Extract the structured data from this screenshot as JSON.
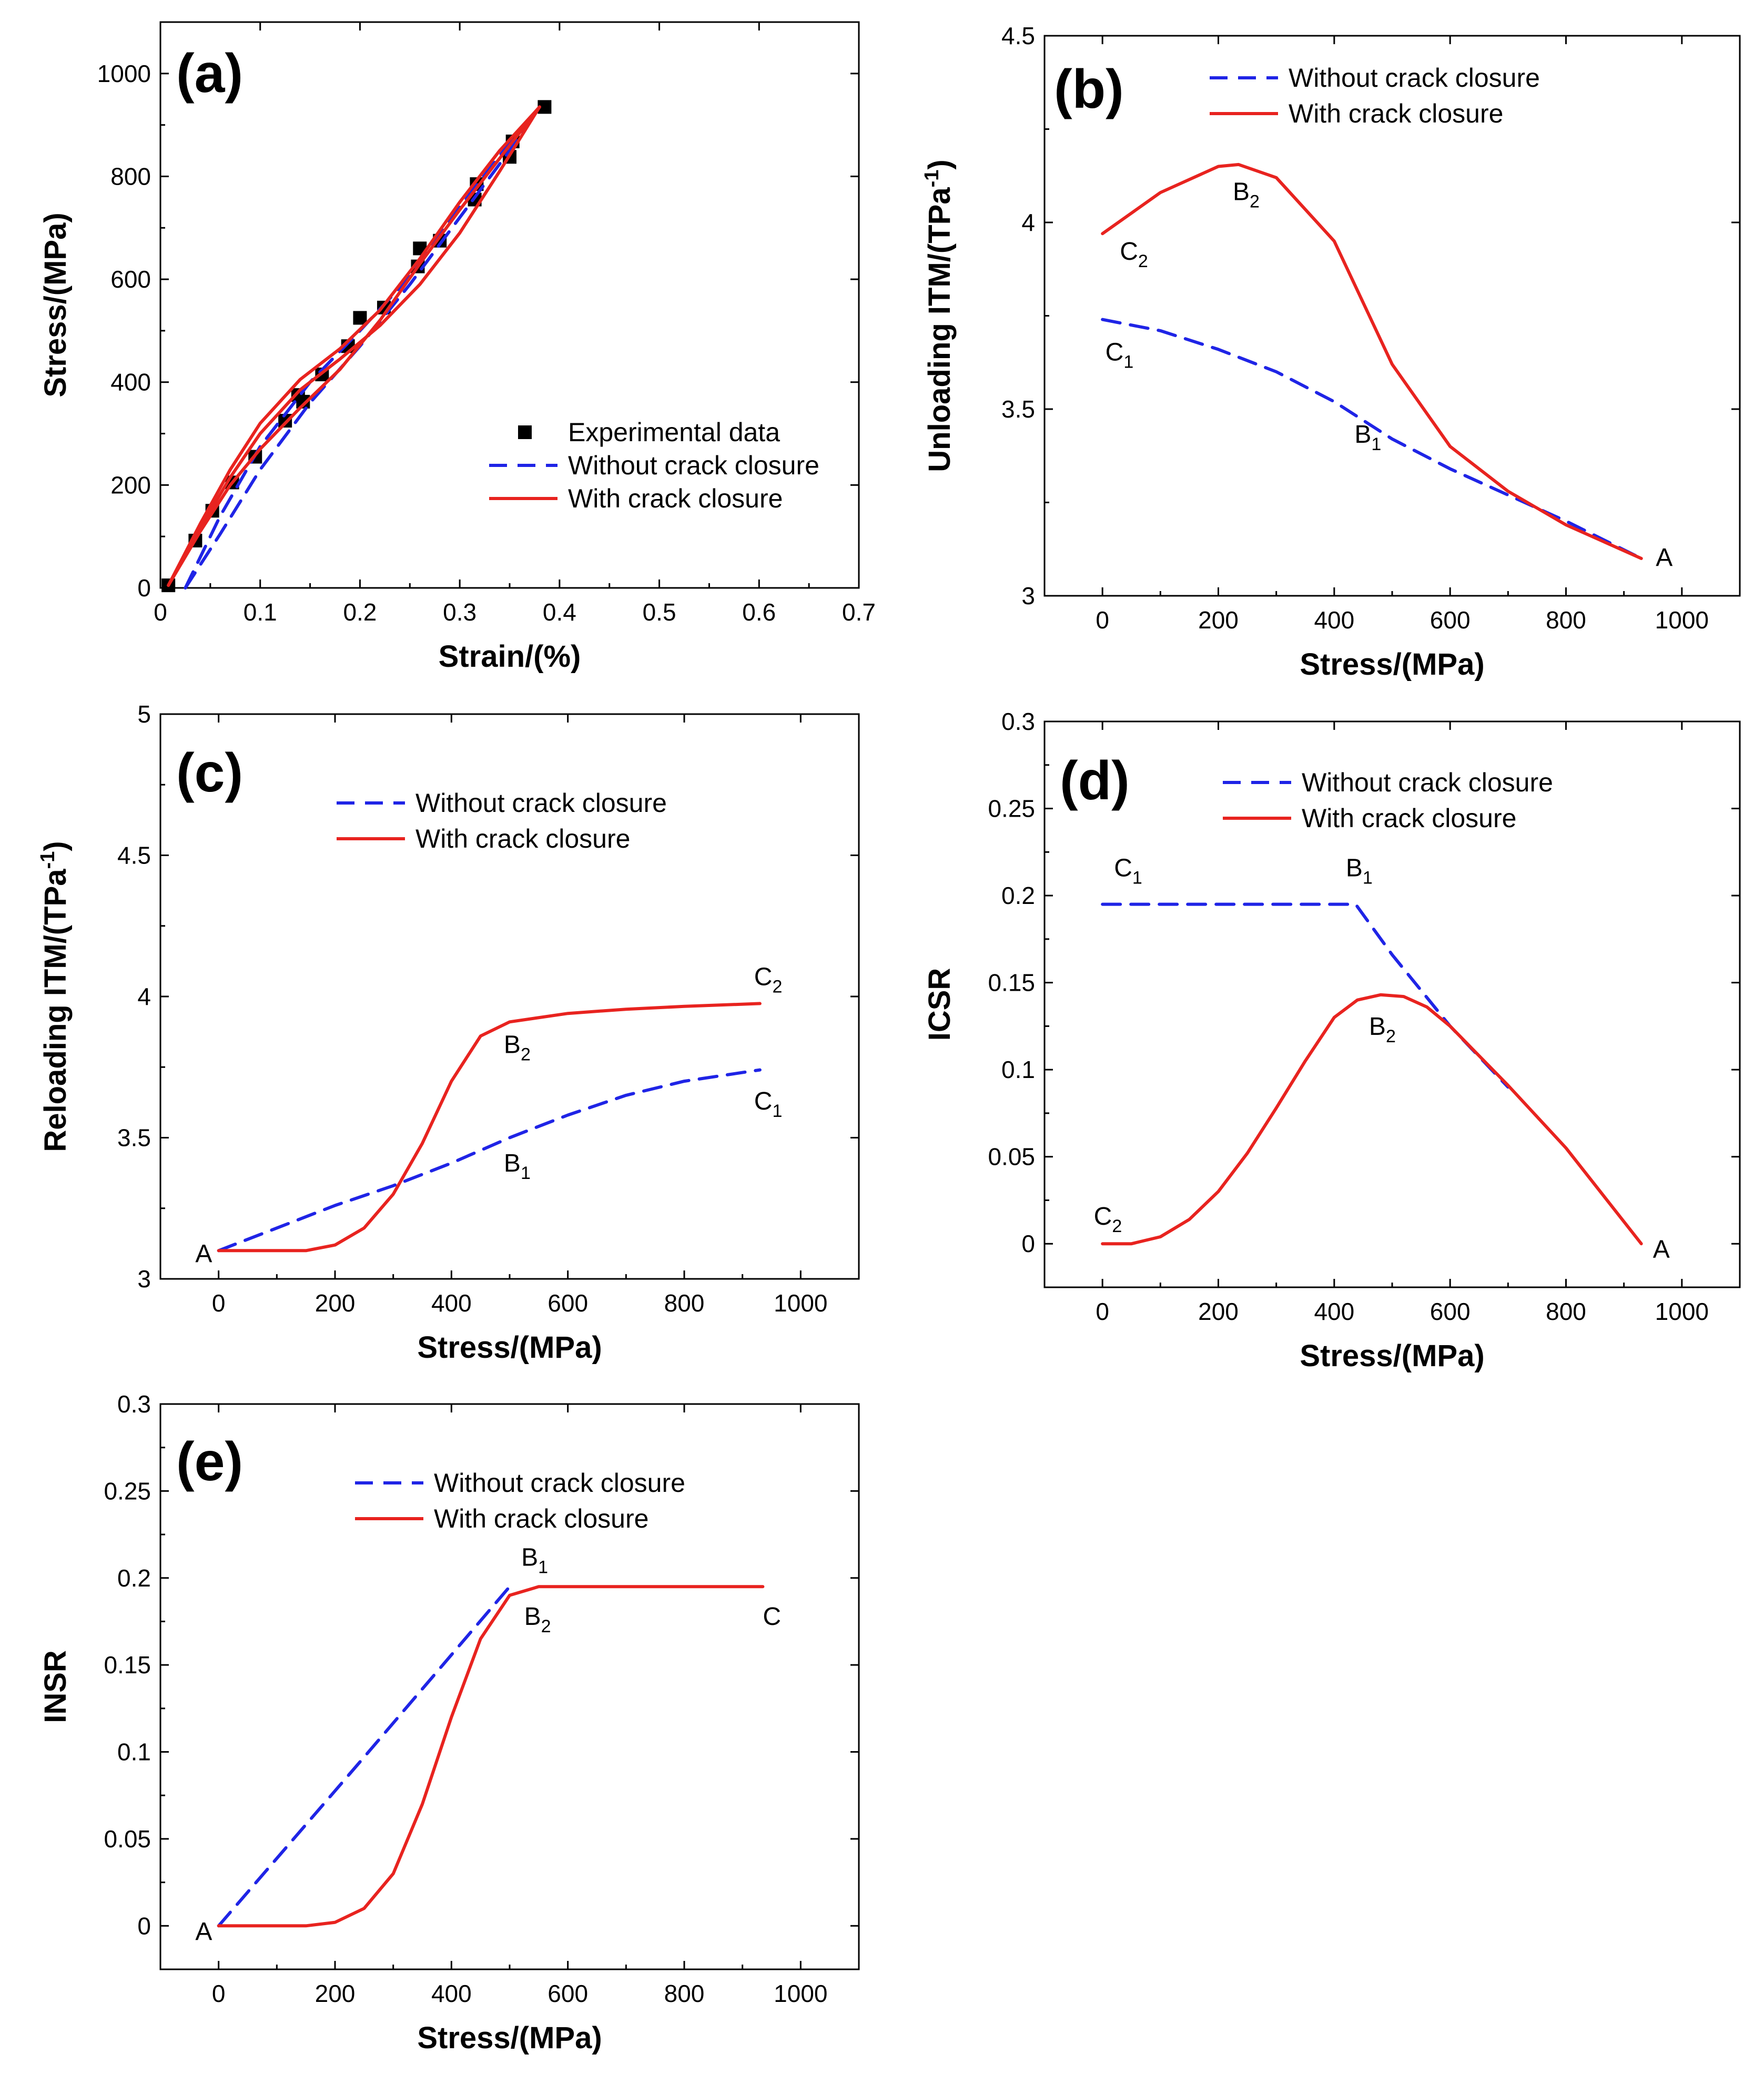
{
  "colors": {
    "without": "#1f24e6",
    "with": "#e8231f",
    "marker": "#000000"
  },
  "chart_data": [
    {
      "id": "a",
      "type": "line",
      "tag": "(a)",
      "xlabel": "Strain/(%)",
      "ylabel": "Stress/(MPa)",
      "xlim": [
        0,
        0.7
      ],
      "ylim": [
        0,
        1100
      ],
      "xticks": [
        0,
        0.1,
        0.2,
        0.3,
        0.4,
        0.5,
        0.6,
        0.7
      ],
      "xtick_labels": [
        "0",
        "0.1",
        "0.2",
        "0.3",
        "0.4",
        "0.5",
        "0.6",
        "0.7"
      ],
      "yticks": [
        0,
        200,
        400,
        600,
        800,
        1000
      ],
      "ytick_labels": [
        "0",
        "200",
        "400",
        "600",
        "800",
        "1000"
      ],
      "legend": {
        "position": "lower-right",
        "entries": [
          {
            "label": "Experimental data",
            "style": "marker",
            "color_key": "marker"
          },
          {
            "label": "Without crack closure",
            "style": "dashed",
            "color_key": "without"
          },
          {
            "label": "With crack closure",
            "style": "solid",
            "color_key": "with"
          }
        ]
      },
      "series": [
        {
          "name": "Experimental data",
          "style": "marker",
          "color_key": "marker",
          "x": [
            0.008,
            0.035,
            0.052,
            0.072,
            0.095,
            0.125,
            0.138,
            0.143,
            0.162,
            0.188,
            0.2,
            0.224,
            0.258,
            0.26,
            0.28,
            0.315,
            0.317,
            0.35,
            0.353,
            0.385
          ],
          "y": [
            5,
            92,
            150,
            205,
            255,
            325,
            375,
            362,
            415,
            470,
            525,
            545,
            625,
            660,
            675,
            755,
            785,
            838,
            868,
            935
          ]
        },
        {
          "name": "Without crack closure",
          "style": "dashed",
          "color_key": "without",
          "segments": [
            {
              "x": [
                0.025,
                0.06,
                0.1,
                0.15,
                0.2,
                0.25,
                0.3,
                0.35,
                0.38
              ],
              "y": [
                0,
                105,
                230,
                360,
                470,
                590,
                720,
                850,
                935
              ]
            },
            {
              "x": [
                0.025,
                0.06,
                0.1,
                0.15,
                0.2,
                0.25,
                0.3,
                0.35,
                0.38
              ],
              "y": [
                0,
                140,
                275,
                400,
                500,
                605,
                740,
                865,
                935
              ]
            }
          ]
        },
        {
          "name": "With crack closure",
          "style": "solid",
          "color_key": "with",
          "segments": [
            {
              "x": [
                0.008,
                0.035,
                0.07,
                0.1,
                0.14,
                0.18,
                0.22,
                0.26,
                0.3,
                0.34,
                0.38
              ],
              "y": [
                5,
                100,
                215,
                300,
                385,
                445,
                510,
                590,
                690,
                810,
                935
              ]
            },
            {
              "x": [
                0.008,
                0.04,
                0.07,
                0.1,
                0.14,
                0.18,
                0.22,
                0.26,
                0.3,
                0.34,
                0.38
              ],
              "y": [
                5,
                110,
                200,
                270,
                350,
                425,
                520,
                630,
                735,
                835,
                935
              ]
            },
            {
              "x": [
                0.008,
                0.04,
                0.07,
                0.1,
                0.14,
                0.18,
                0.22,
                0.26,
                0.3,
                0.34,
                0.38
              ],
              "y": [
                5,
                125,
                230,
                320,
                405,
                465,
                540,
                640,
                750,
                850,
                935
              ]
            }
          ]
        }
      ],
      "annotations": []
    },
    {
      "id": "b",
      "type": "line",
      "tag": "(b)",
      "xlabel": "Stress/(MPa)",
      "ylabel": "Unloading ITM/(TPa",
      "ylabel_sup": "-1",
      "ylabel_tail": ")",
      "xlim": [
        -100,
        1100
      ],
      "ylim": [
        3,
        4.5
      ],
      "xticks": [
        0,
        200,
        400,
        600,
        800,
        1000
      ],
      "xtick_labels": [
        "0",
        "200",
        "400",
        "600",
        "800",
        "1000"
      ],
      "yticks": [
        3,
        3.5,
        4,
        4.5
      ],
      "ytick_labels": [
        "3",
        "3.5",
        "4",
        "4.5"
      ],
      "legend": {
        "position": "top-center",
        "entries": [
          {
            "label": "Without crack closure",
            "style": "dashed",
            "color_key": "without"
          },
          {
            "label": "With crack closure",
            "style": "solid",
            "color_key": "with"
          }
        ]
      },
      "series": [
        {
          "name": "Without crack closure",
          "style": "dashed",
          "color_key": "without",
          "x": [
            0,
            100,
            200,
            300,
            400,
            500,
            600,
            700,
            800,
            930
          ],
          "y": [
            3.74,
            3.71,
            3.66,
            3.6,
            3.52,
            3.42,
            3.34,
            3.27,
            3.2,
            3.1
          ]
        },
        {
          "name": "With crack closure",
          "style": "solid",
          "color_key": "with",
          "x": [
            0,
            100,
            200,
            235,
            300,
            400,
            500,
            600,
            700,
            800,
            930
          ],
          "y": [
            3.97,
            4.08,
            4.15,
            4.155,
            4.12,
            3.95,
            3.62,
            3.4,
            3.28,
            3.19,
            3.1
          ]
        }
      ],
      "annotations": [
        {
          "text": "B",
          "sub": "2",
          "x": 225,
          "y": 4.06
        },
        {
          "text": "C",
          "sub": "2",
          "x": 30,
          "y": 3.9
        },
        {
          "text": "C",
          "sub": "1",
          "x": 5,
          "y": 3.63
        },
        {
          "text": "B",
          "sub": "1",
          "x": 435,
          "y": 3.41
        },
        {
          "text": "A",
          "sub": "",
          "x": 955,
          "y": 3.08
        }
      ]
    },
    {
      "id": "c",
      "type": "line",
      "tag": "(c)",
      "xlabel": "Stress/(MPa)",
      "ylabel": "Reloading ITM/(TPa",
      "ylabel_sup": "-1",
      "ylabel_tail": ")",
      "xlim": [
        -100,
        1100
      ],
      "ylim": [
        3,
        5
      ],
      "xticks": [
        0,
        200,
        400,
        600,
        800,
        1000
      ],
      "xtick_labels": [
        "0",
        "200",
        "400",
        "600",
        "800",
        "1000"
      ],
      "yticks": [
        3,
        3.5,
        4,
        4.5,
        5
      ],
      "ytick_labels": [
        "3",
        "3.5",
        "4",
        "4.5",
        "5"
      ],
      "legend": {
        "position": "top-center",
        "entries": [
          {
            "label": "Without crack closure",
            "style": "dashed",
            "color_key": "without"
          },
          {
            "label": "With crack closure",
            "style": "solid",
            "color_key": "with"
          }
        ]
      },
      "series": [
        {
          "name": "Without crack closure",
          "style": "dashed",
          "color_key": "without",
          "x": [
            0,
            100,
            200,
            300,
            400,
            500,
            600,
            700,
            800,
            930
          ],
          "y": [
            3.1,
            3.18,
            3.26,
            3.33,
            3.41,
            3.5,
            3.58,
            3.65,
            3.7,
            3.74
          ]
        },
        {
          "name": "With crack closure",
          "style": "solid",
          "color_key": "with",
          "x": [
            0,
            100,
            150,
            200,
            250,
            300,
            350,
            400,
            450,
            500,
            600,
            700,
            800,
            930
          ],
          "y": [
            3.1,
            3.1,
            3.1,
            3.12,
            3.18,
            3.3,
            3.48,
            3.7,
            3.86,
            3.91,
            3.94,
            3.955,
            3.965,
            3.975
          ]
        }
      ],
      "annotations": [
        {
          "text": "A",
          "sub": "",
          "x": -40,
          "y": 3.06
        },
        {
          "text": "B",
          "sub": "2",
          "x": 490,
          "y": 3.8
        },
        {
          "text": "B",
          "sub": "1",
          "x": 490,
          "y": 3.38
        },
        {
          "text": "C",
          "sub": "2",
          "x": 920,
          "y": 4.04
        },
        {
          "text": "C",
          "sub": "1",
          "x": 920,
          "y": 3.6
        }
      ]
    },
    {
      "id": "d",
      "type": "line",
      "tag": "(d)",
      "xlabel": "Stress/(MPa)",
      "ylabel": "ICSR",
      "xlim": [
        -100,
        1100
      ],
      "ylim": [
        -0.025,
        0.3
      ],
      "xticks": [
        0,
        200,
        400,
        600,
        800,
        1000
      ],
      "xtick_labels": [
        "0",
        "200",
        "400",
        "600",
        "800",
        "1000"
      ],
      "yticks": [
        0,
        0.05,
        0.1,
        0.15,
        0.2,
        0.25,
        0.3
      ],
      "ytick_labels": [
        "0",
        "0.05",
        "0.1",
        "0.15",
        "0.2",
        "0.25",
        "0.3"
      ],
      "legend": {
        "position": "top-center",
        "entries": [
          {
            "label": "Without crack closure",
            "style": "dashed",
            "color_key": "without"
          },
          {
            "label": "With crack closure",
            "style": "solid",
            "color_key": "with"
          }
        ]
      },
      "series": [
        {
          "name": "Without crack closure",
          "style": "dashed",
          "color_key": "without",
          "x": [
            0,
            200,
            437,
            500,
            600,
            700
          ],
          "y": [
            0.195,
            0.195,
            0.195,
            0.166,
            0.125,
            0.09
          ]
        },
        {
          "name": "With crack closure",
          "style": "solid",
          "color_key": "with",
          "x": [
            0,
            50,
            100,
            150,
            200,
            250,
            300,
            350,
            400,
            440,
            480,
            520,
            560,
            600,
            700,
            800,
            930
          ],
          "y": [
            0,
            0,
            0.004,
            0.014,
            0.03,
            0.052,
            0.078,
            0.105,
            0.13,
            0.14,
            0.143,
            0.142,
            0.136,
            0.125,
            0.091,
            0.055,
            0
          ]
        }
      ],
      "annotations": [
        {
          "text": "C",
          "sub": "1",
          "x": 20,
          "y": 0.211
        },
        {
          "text": "B",
          "sub": "1",
          "x": 420,
          "y": 0.211
        },
        {
          "text": "B",
          "sub": "2",
          "x": 460,
          "y": 0.12
        },
        {
          "text": "C",
          "sub": "2",
          "x": -15,
          "y": 0.011
        },
        {
          "text": "A",
          "sub": "",
          "x": 950,
          "y": -0.008
        }
      ]
    },
    {
      "id": "e",
      "type": "line",
      "tag": "(e)",
      "xlabel": "Stress/(MPa)",
      "ylabel": "INSR",
      "xlim": [
        -100,
        1100
      ],
      "ylim": [
        -0.025,
        0.3
      ],
      "xticks": [
        0,
        200,
        400,
        600,
        800,
        1000
      ],
      "xtick_labels": [
        "0",
        "200",
        "400",
        "600",
        "800",
        "1000"
      ],
      "yticks": [
        0,
        0.05,
        0.1,
        0.15,
        0.2,
        0.25,
        0.3
      ],
      "ytick_labels": [
        "0",
        "0.05",
        "0.1",
        "0.15",
        "0.2",
        "0.25",
        "0.3"
      ],
      "legend": {
        "position": "top-center",
        "entries": [
          {
            "label": "Without crack closure",
            "style": "dashed",
            "color_key": "without"
          },
          {
            "label": "With crack closure",
            "style": "solid",
            "color_key": "with"
          }
        ]
      },
      "series": [
        {
          "name": "Without crack closure",
          "style": "dashed",
          "color_key": "without",
          "x": [
            0,
            250,
            500
          ],
          "y": [
            0,
            0.097,
            0.195
          ]
        },
        {
          "name": "With crack closure",
          "style": "solid",
          "color_key": "with",
          "x": [
            0,
            100,
            150,
            200,
            250,
            300,
            350,
            400,
            450,
            500,
            550,
            600,
            700,
            800,
            935
          ],
          "y": [
            0,
            0,
            0,
            0.002,
            0.01,
            0.03,
            0.07,
            0.12,
            0.165,
            0.19,
            0.195,
            0.195,
            0.195,
            0.195,
            0.195
          ]
        }
      ],
      "annotations": [
        {
          "text": "B",
          "sub": "1",
          "x": 520,
          "y": 0.207
        },
        {
          "text": "B",
          "sub": "2",
          "x": 525,
          "y": 0.173
        },
        {
          "text": "C",
          "sub": "",
          "x": 935,
          "y": 0.173
        },
        {
          "text": "A",
          "sub": "",
          "x": -40,
          "y": -0.008
        }
      ]
    }
  ]
}
